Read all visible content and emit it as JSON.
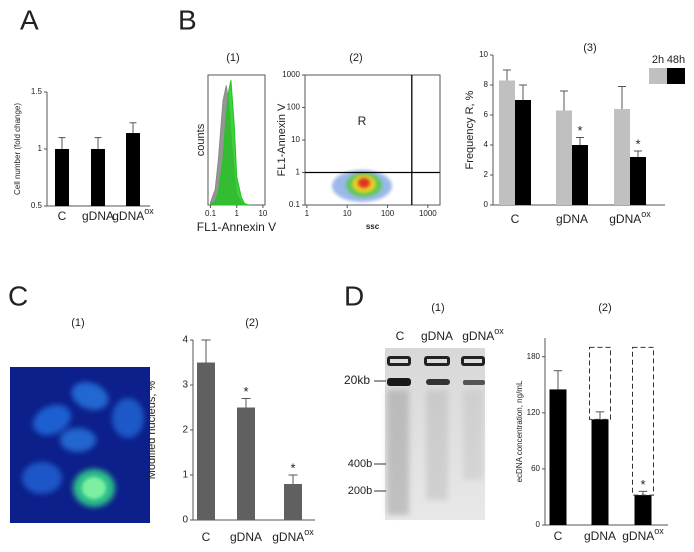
{
  "panel_labels": [
    "A",
    "B",
    "C",
    "D"
  ],
  "image_panels": [
    {
      "title": "(1)"
    },
    {
      "title": "(1)",
      "lane_labels": [
        "C",
        "gDNA",
        "gDNA"
      ],
      "lane_superscripts": [
        null,
        null,
        "ox"
      ],
      "marker_labels": [
        "20kb",
        "400b",
        "200b"
      ]
    }
  ],
  "chart_data": [
    {
      "type": "bar",
      "ylabel": "Cell number (fold change)",
      "categories": [
        "C",
        "gDNA",
        "gDNA"
      ],
      "category_superscripts": [
        null,
        null,
        "ox"
      ],
      "series": [
        {
          "color": "#000000",
          "values": [
            1.0,
            1.0,
            1.14
          ],
          "errors": [
            0.1,
            0.1,
            0.09
          ]
        }
      ],
      "ylim": [
        0.5,
        1.5
      ],
      "yticks": [
        0.5,
        1,
        1.5
      ]
    },
    {
      "type": "area",
      "title": "(1)",
      "ylabel": "counts",
      "xlabel": "FL1-Annexin V",
      "xscale": "log",
      "x": [
        0.1,
        0.15,
        0.2,
        0.3,
        0.4,
        0.5,
        0.6,
        0.8,
        1,
        1.5,
        2,
        3
      ],
      "series": [
        {
          "color": "#8a8a8a",
          "values": [
            2,
            12,
            35,
            80,
            92,
            78,
            55,
            25,
            8,
            2,
            0,
            0
          ]
        },
        {
          "color": "#22c422",
          "values": [
            0,
            3,
            10,
            35,
            70,
            88,
            96,
            62,
            22,
            6,
            1,
            0
          ]
        }
      ],
      "xlim": [
        0.08,
        12
      ],
      "xticks": [
        0.1,
        1,
        10
      ],
      "ylim": [
        0,
        100
      ]
    },
    {
      "type": "scatter-density",
      "title": "(2)",
      "ylabel": "FL1-Annexin V",
      "xlabel": "ssc",
      "annotation": "R",
      "xscale": "log",
      "yscale": "log",
      "xlim": [
        0.9,
        2000
      ],
      "xticks": [
        1,
        10,
        100,
        1000
      ],
      "ylim": [
        0.1,
        1000
      ],
      "yticks": [
        0.1,
        1,
        10,
        100,
        1000
      ],
      "gates": {
        "x": 400,
        "y": 1
      }
    },
    {
      "type": "grouped-bar",
      "title": "(3)",
      "ylabel": "Frequency R, %",
      "categories": [
        "C",
        "gDNA",
        "gDNA"
      ],
      "category_superscripts": [
        null,
        null,
        "ox"
      ],
      "series": [
        {
          "name": "2h",
          "color": "#c0c0c0",
          "values": [
            8.3,
            6.3,
            6.4
          ],
          "errors": [
            0.7,
            1.3,
            1.5
          ]
        },
        {
          "name": "48h",
          "color": "#000000",
          "values": [
            7.0,
            4.0,
            3.2
          ],
          "errors": [
            1.0,
            0.5,
            0.4
          ],
          "significance": [
            null,
            "*",
            "*"
          ]
        }
      ],
      "ylim": [
        0,
        10
      ],
      "yticks": [
        0,
        2,
        4,
        6,
        8,
        10
      ],
      "legend": "top-right"
    },
    {
      "type": "bar",
      "title": "(2)",
      "ylabel": "Modified nucleus, %",
      "categories": [
        "C",
        "gDNA",
        "gDNA"
      ],
      "category_superscripts": [
        null,
        null,
        "ox"
      ],
      "series": [
        {
          "color": "#606060",
          "values": [
            3.5,
            2.5,
            0.8
          ],
          "errors": [
            0.5,
            0.2,
            0.2
          ],
          "significance": [
            null,
            "*",
            "*"
          ]
        }
      ],
      "ylim": [
        0,
        4
      ],
      "yticks": [
        0,
        1,
        2,
        3,
        4
      ]
    },
    {
      "type": "bar",
      "title": "(2)",
      "ylabel": "ecDNA concentration, ng/mL",
      "categories": [
        "C",
        "gDNA",
        "gDNA"
      ],
      "category_superscripts": [
        null,
        null,
        "ox"
      ],
      "series": [
        {
          "color": "#000000",
          "values": [
            145,
            113,
            32
          ],
          "errors": [
            20,
            8,
            4
          ],
          "significance": [
            null,
            null,
            "*"
          ],
          "dashed_box_top": [
            null,
            190,
            190
          ]
        }
      ],
      "ylim": [
        0,
        200
      ],
      "yticks": [
        0,
        60,
        120,
        180
      ]
    }
  ]
}
